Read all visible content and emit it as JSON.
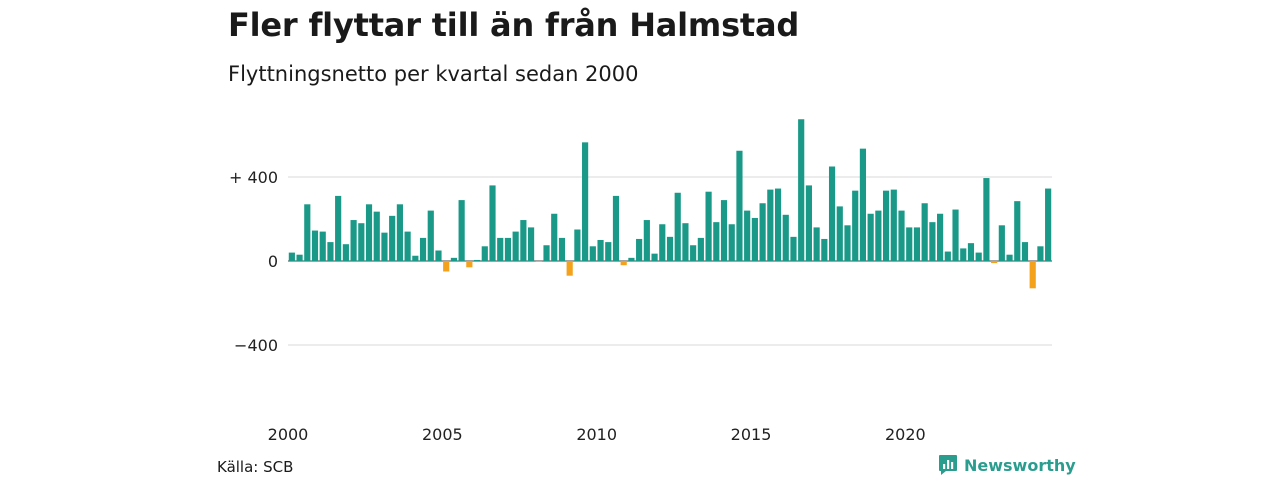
{
  "title": "Fler flyttar till än från Halmstad",
  "subtitle": "Flyttningsnetto per kvartal sedan 2000",
  "source": "Källa: SCB",
  "brand": "Newsworthy",
  "colors": {
    "positive": "#1a9988",
    "negative": "#f4a11c",
    "grid": "#d9d9d9",
    "brand": "#2a9d8f"
  },
  "chart_data": {
    "type": "bar",
    "title": "Fler flyttar till än från Halmstad",
    "subtitle": "Flyttningsnetto per kvartal sedan 2000",
    "xlabel": "",
    "ylabel": "",
    "x_ticks": [
      {
        "label": "2000",
        "year": 2000
      },
      {
        "label": "2005",
        "year": 2005
      },
      {
        "label": "2010",
        "year": 2010
      },
      {
        "label": "2015",
        "year": 2015
      },
      {
        "label": "2020",
        "year": 2020
      }
    ],
    "y_ticks": [
      {
        "label": "+ 400",
        "value": 400
      },
      {
        "label": "0",
        "value": 0
      },
      {
        "label": "−400",
        "value": -400
      }
    ],
    "ylim": [
      -400,
      700
    ],
    "grid": true,
    "start_year": 2000,
    "start_quarter": 1,
    "series": [
      {
        "values": [
          40,
          30,
          270,
          145,
          140,
          90,
          310,
          80,
          195,
          180,
          270,
          235,
          135,
          215,
          270,
          140,
          25,
          110,
          240,
          50,
          -50,
          15,
          290,
          -30,
          5,
          70,
          360,
          110,
          110,
          140,
          195,
          160,
          0,
          75,
          225,
          110,
          -70,
          150,
          565,
          70,
          100,
          90,
          310,
          -20,
          15,
          105,
          195,
          35,
          175,
          115,
          325,
          180,
          75,
          110,
          330,
          185,
          290,
          175,
          525,
          240,
          205,
          275,
          340,
          345,
          220,
          115,
          675,
          360,
          160,
          105,
          450,
          260,
          170,
          335,
          535,
          225,
          240,
          335,
          340,
          240,
          160,
          160,
          275,
          185,
          225,
          45,
          245,
          60,
          85,
          40,
          395,
          -10,
          170,
          30,
          285,
          90,
          -130,
          70,
          345
        ]
      }
    ]
  }
}
